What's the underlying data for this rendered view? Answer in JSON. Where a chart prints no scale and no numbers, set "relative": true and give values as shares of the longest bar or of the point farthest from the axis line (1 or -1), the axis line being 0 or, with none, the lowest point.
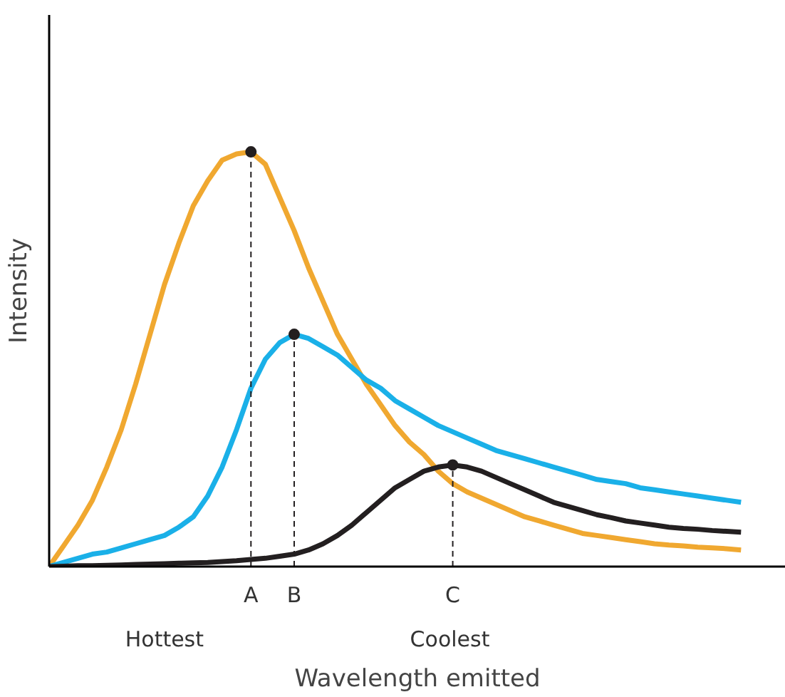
{
  "chart_data": {
    "type": "line",
    "relative": true,
    "xlabel": "Wavelength emitted",
    "ylabel": "Intensity",
    "categories": [
      null,
      null,
      null,
      null,
      null,
      null,
      null,
      null,
      null,
      null,
      null,
      null,
      null,
      null,
      "A",
      null,
      null,
      "B",
      null,
      null,
      null,
      null,
      null,
      null,
      null,
      null,
      null,
      null,
      "C",
      null,
      null,
      null,
      null,
      null,
      null,
      null,
      null,
      null,
      null,
      null,
      null,
      null,
      null,
      null,
      null,
      null,
      null,
      null,
      null
    ],
    "series": [
      {
        "color": "#f0a830",
        "values": [
          0,
          0.05,
          0.1,
          0.16,
          0.24,
          0.33,
          0.44,
          0.56,
          0.68,
          0.78,
          0.87,
          0.93,
          0.98,
          0.995,
          1.0,
          0.97,
          0.89,
          0.81,
          0.72,
          0.64,
          0.56,
          0.5,
          0.44,
          0.39,
          0.34,
          0.3,
          0.27,
          0.23,
          0.2,
          0.18,
          0.165,
          0.15,
          0.135,
          0.12,
          0.11,
          0.1,
          0.09,
          0.08,
          0.075,
          0.07,
          0.065,
          0.06,
          0.055,
          0.052,
          0.05,
          0.047,
          0.045,
          0.043,
          0.04
        ]
      },
      {
        "color": "#1ab0e8",
        "values": [
          0,
          0.01,
          0.02,
          0.03,
          0.035,
          0.045,
          0.055,
          0.065,
          0.075,
          0.095,
          0.12,
          0.17,
          0.24,
          0.33,
          0.43,
          0.5,
          0.54,
          0.56,
          0.55,
          0.53,
          0.51,
          0.48,
          0.45,
          0.43,
          0.4,
          0.38,
          0.36,
          0.34,
          0.325,
          0.31,
          0.295,
          0.28,
          0.27,
          0.26,
          0.25,
          0.24,
          0.23,
          0.22,
          0.21,
          0.205,
          0.2,
          0.19,
          0.185,
          0.18,
          0.175,
          0.17,
          0.165,
          0.16,
          0.155
        ]
      },
      {
        "color": "#231f20",
        "values": [
          0,
          0.001,
          0.002,
          0.002,
          0.003,
          0.004,
          0.005,
          0.006,
          0.007,
          0.008,
          0.009,
          0.01,
          0.012,
          0.014,
          0.017,
          0.02,
          0.025,
          0.03,
          0.04,
          0.055,
          0.075,
          0.1,
          0.13,
          0.16,
          0.19,
          0.21,
          0.23,
          0.24,
          0.245,
          0.24,
          0.23,
          0.215,
          0.2,
          0.185,
          0.17,
          0.155,
          0.145,
          0.135,
          0.125,
          0.118,
          0.11,
          0.105,
          0.1,
          0.095,
          0.092,
          0.09,
          0.087,
          0.085,
          0.083
        ]
      },
      {
        "type": "lollipop",
        "color": "#231f20",
        "line_style": "dashed",
        "marker": "circle",
        "values": [
          null,
          null,
          null,
          null,
          null,
          null,
          null,
          null,
          null,
          null,
          null,
          null,
          null,
          null,
          1.0,
          null,
          null,
          0.56,
          null,
          null,
          null,
          null,
          null,
          null,
          null,
          null,
          null,
          null,
          0.245,
          null,
          null,
          null,
          null,
          null,
          null,
          null,
          null,
          null,
          null,
          null,
          null,
          null,
          null,
          null,
          null,
          null,
          null,
          null,
          null
        ]
      }
    ],
    "annotations": [
      "Hottest",
      "Coolest"
    ],
    "grid": false,
    "line_style": "solid",
    "marker": "none"
  }
}
